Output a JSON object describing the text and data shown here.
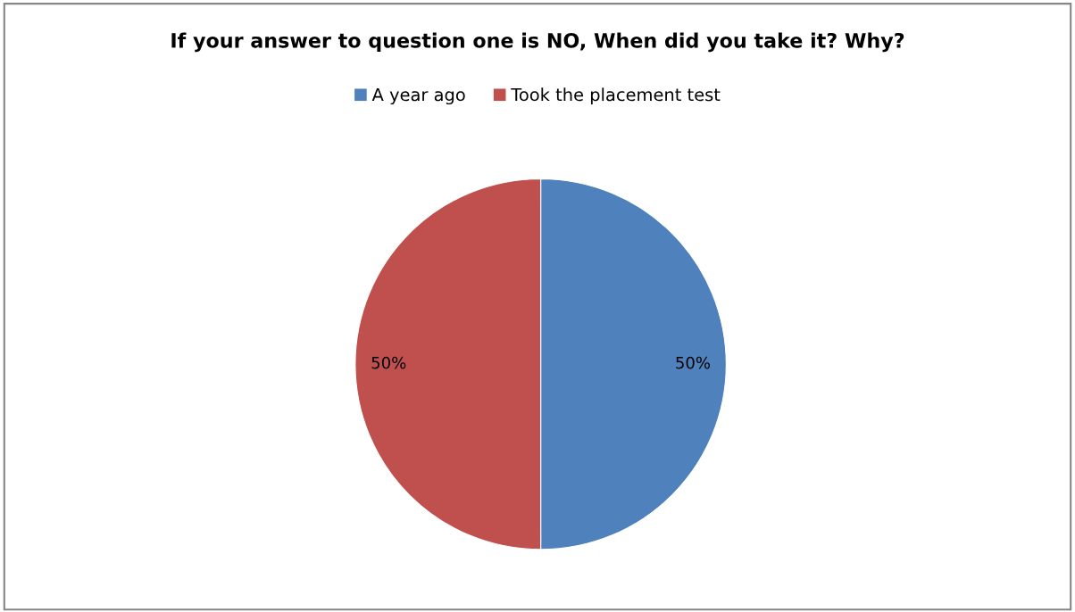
{
  "chart_data": {
    "type": "pie",
    "title": "If your answer to question one is NO, When did you take it? Why?",
    "categories": [
      "A year ago",
      "Took the placement test"
    ],
    "values": [
      50,
      50
    ],
    "colors": [
      "#4f81bd",
      "#c0504d"
    ],
    "value_labels": [
      "50%",
      "50%"
    ],
    "legend": "top"
  }
}
